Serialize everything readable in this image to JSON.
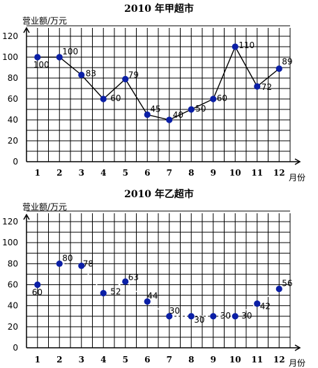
{
  "chart_data": [
    {
      "type": "line",
      "title": "2010 年甲超市",
      "ylabel": "营业额/万元",
      "xlabel": "月份",
      "categories": [
        "1",
        "2",
        "3",
        "4",
        "5",
        "6",
        "7",
        "8",
        "9",
        "10",
        "11",
        "12"
      ],
      "values": [
        100,
        100,
        83,
        60,
        79,
        45,
        40,
        50,
        60,
        110,
        72,
        89
      ],
      "yticks": [
        "0",
        "20",
        "40",
        "60",
        "80",
        "100",
        "120"
      ],
      "ylim": [
        0,
        120
      ],
      "grid": true,
      "line_style": "solid",
      "marker_color": "#0b1fa6"
    },
    {
      "type": "line",
      "title": "2010 年乙超市",
      "ylabel": "营业额/万元",
      "xlabel": "月份",
      "categories": [
        "1",
        "2",
        "3",
        "4",
        "5",
        "6",
        "7",
        "8",
        "9",
        "10",
        "11",
        "12"
      ],
      "values": [
        60,
        80,
        78,
        52,
        63,
        44,
        30,
        30,
        30,
        30,
        42,
        56
      ],
      "yticks": [
        "0",
        "20",
        "40",
        "60",
        "80",
        "100",
        "120"
      ],
      "ylim": [
        0,
        120
      ],
      "grid": true,
      "line_style": "dashed-white",
      "marker_color": "#0b1fa6"
    }
  ]
}
